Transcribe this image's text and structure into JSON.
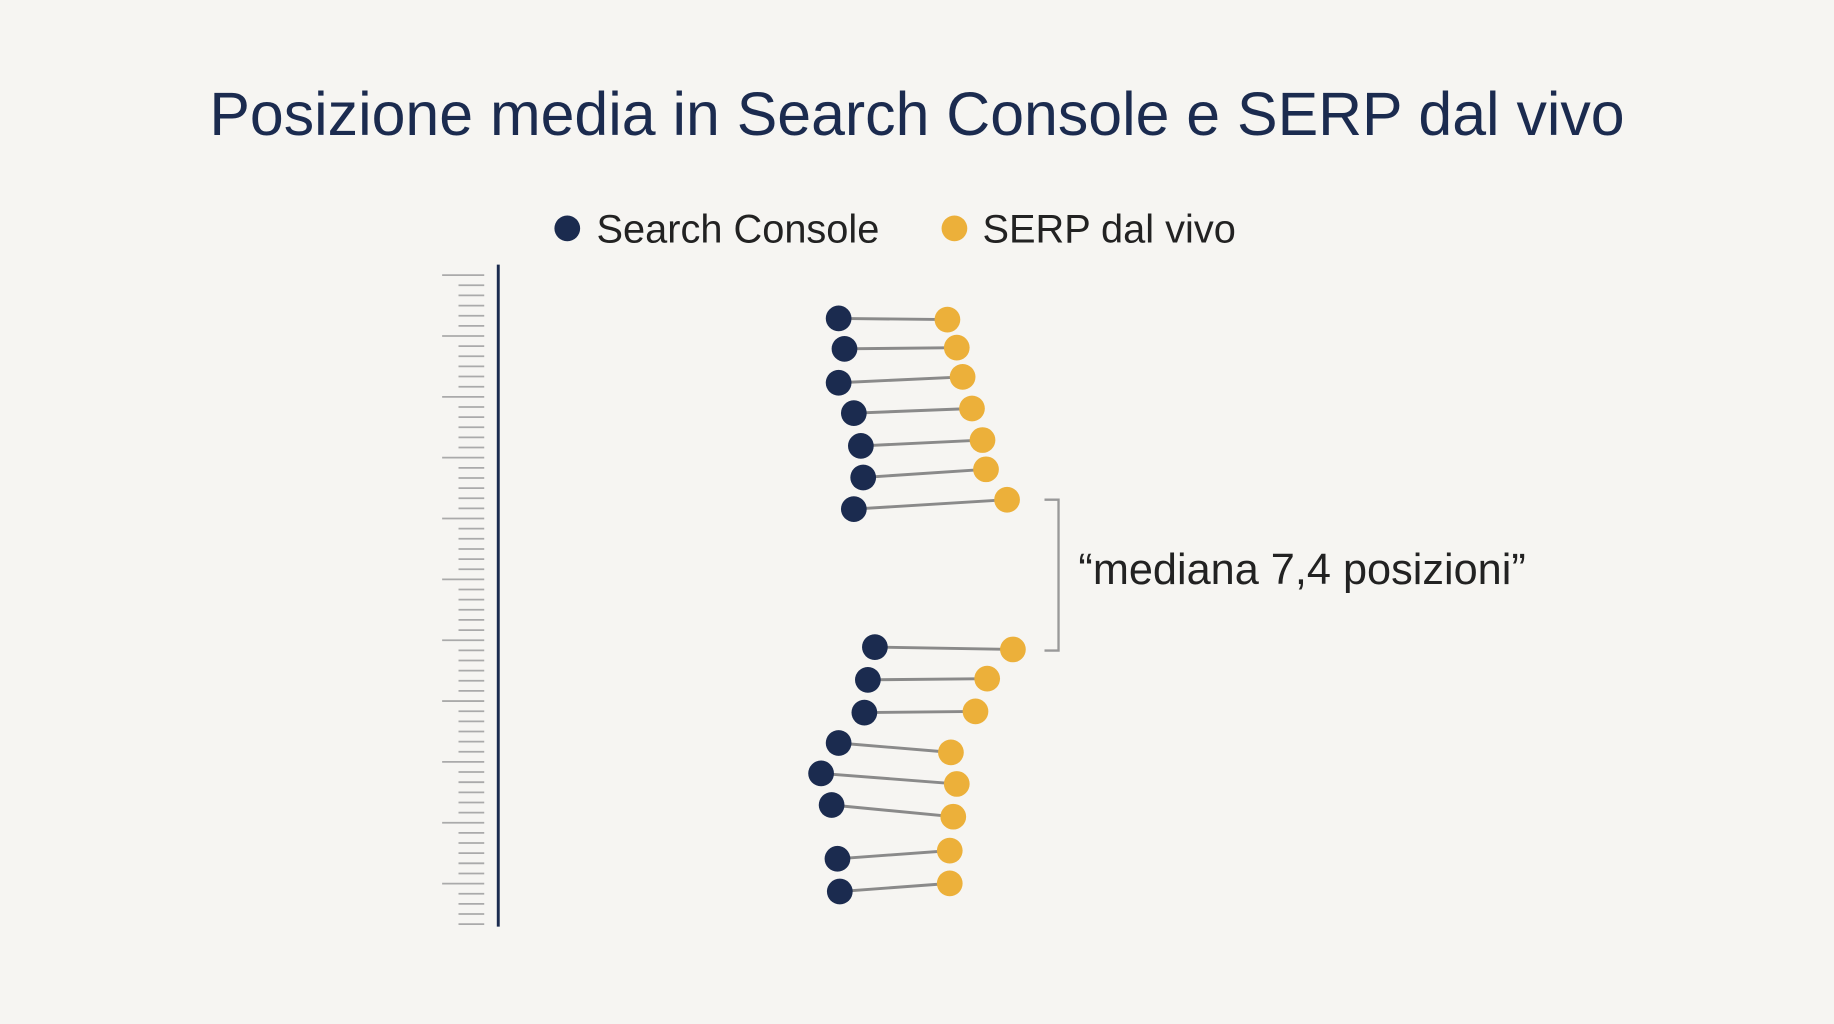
{
  "header": {
    "title": "Posizione media in Search Console e SERP dal vivo"
  },
  "legend": [
    "Search Console",
    "SERP dal vivo"
  ],
  "annotation": "“mediana 7,4 posizioni”"
}
